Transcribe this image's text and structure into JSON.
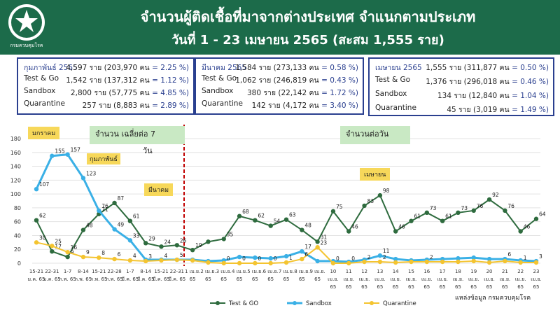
{
  "header": {
    "title": "จำนวนผู้ติดเชื้อที่มาจากต่างประเทศ จำแนกตามประเภท",
    "subtitle": "วันที่   1 - 23 เมษายน  2565 (สะสม 1,555 ราย)",
    "logo_text": "กรมควบคุมโรค"
  },
  "panels": [
    {
      "rows": [
        {
          "label": "กุมภาพันธ์ 2565",
          "value": "4,597 ราย (203,970 คน",
          "pct": " = 2.25 %)",
          "is_month": true
        },
        {
          "label": "Test & Go",
          "value": "1,542 ราย (137,312 คน",
          "pct": " = 1.12 %)"
        },
        {
          "label": "Sandbox",
          "value": "2,800 ราย (57,775 คน",
          "pct": " = 4.85 %)"
        },
        {
          "label": "Quarantine",
          "value": "257 ราย (8,883 คน",
          "pct": " = 2.89 %)"
        }
      ]
    },
    {
      "rows": [
        {
          "label": "มีนาคม 2565",
          "value": "1,584 ราย (273,133 คน",
          "pct": " = 0.58 %)",
          "is_month": true
        },
        {
          "label": "Test & Go",
          "value": "1,062 ราย (246,819 คน",
          "pct": " = 0.43 %)"
        },
        {
          "label": "Sandbox",
          "value": "380 ราย (22,142 คน",
          "pct": " = 1.72 %)"
        },
        {
          "label": "Quarantine",
          "value": "142 ราย (4,172 คน",
          "pct": " = 3.40 %)"
        }
      ]
    },
    {
      "rows": [
        {
          "label": "เมษายน 2565",
          "value": "1,555 ราย (311,877 คน",
          "pct": "  = 0.50 %)",
          "is_month": true
        },
        {
          "label": "Test & Go",
          "value": "1,376 ราย (296,018 คน",
          "pct": " = 0.46 %)"
        },
        {
          "label": "Sandbox",
          "value": "134 ราย (12,840 คน",
          "pct": " = 1.04 %)"
        },
        {
          "label": "Quarantine",
          "value": "45 ราย (3,019 คน",
          "pct": " = 1.49 %)"
        }
      ]
    }
  ],
  "annotations": {
    "jan": "มกราคม",
    "feb": "กุมภาพันธ์",
    "mar": "มีนาคม",
    "apr": "เมษายน",
    "avg7_line1": "จำนวน เฉลี่ยต่อ 7",
    "avg7_line2": "วัน",
    "daily": "จำนวนต่อวัน",
    "source": "แหล่งข้อมูล กรมควบคุมโรค"
  },
  "colors": {
    "banner": "#1c6b4a",
    "test_go": "#2e6b3e",
    "sandbox": "#3ab0e6",
    "quarantine": "#f4c430",
    "divider": "#c00000",
    "panel_border": "#2a3f8f"
  },
  "chart_data": {
    "type": "line",
    "ylim": [
      0,
      180
    ],
    "yticks": [
      0,
      20,
      40,
      60,
      80,
      100,
      120,
      140,
      160,
      180
    ],
    "categories": [
      [
        "15-21",
        "ม.ค. 65"
      ],
      [
        "22-31",
        "ม.ค. 65"
      ],
      [
        "1-7",
        "ก.พ. 65"
      ],
      [
        "8-14",
        "ก.พ. 65"
      ],
      [
        "15-21",
        "ก.พ. 65"
      ],
      [
        "22-28",
        "ก.พ. 65"
      ],
      [
        "1-7",
        "มี.ค. 65"
      ],
      [
        "8-14",
        "มี.ค. 65"
      ],
      [
        "15-21",
        "มี.ค. 65"
      ],
      [
        "22-31",
        "มี.ค. 65"
      ],
      [
        "1 เม.ย.",
        "65"
      ],
      [
        "2 เม.ย.",
        "65"
      ],
      [
        "3 เม.ย.",
        "65"
      ],
      [
        "4 เม.ย.",
        "65"
      ],
      [
        "5 เม.ย.",
        "65"
      ],
      [
        "6 เม.ย.",
        "65"
      ],
      [
        "7 เม.ย.",
        "65"
      ],
      [
        "8 เม.ย.",
        "65"
      ],
      [
        "9 เม.ย.",
        "65"
      ],
      [
        "10",
        "เม.ย.",
        "65"
      ],
      [
        "11",
        "เม.ย.",
        "65"
      ],
      [
        "12",
        "เม.ย.",
        "65"
      ],
      [
        "13",
        "เม.ย.",
        "65"
      ],
      [
        "14",
        "เม.ย.",
        "65"
      ],
      [
        "15",
        "เม.ย.",
        "65"
      ],
      [
        "16",
        "เม.ย.",
        "65"
      ],
      [
        "17",
        "เม.ย.",
        "65"
      ],
      [
        "18",
        "เม.ย.",
        "65"
      ],
      [
        "19",
        "เม.ย.",
        "65"
      ],
      [
        "20",
        "เม.ย.",
        "65"
      ],
      [
        "21",
        "เม.ย.",
        "65"
      ],
      [
        "22",
        "เม.ย.",
        "65"
      ],
      [
        "23",
        "เม.ย.",
        "65"
      ]
    ],
    "series": [
      {
        "name": "Test & GO",
        "values": [
          62,
          17,
          9,
          48,
          71,
          87,
          61,
          29,
          24,
          26,
          19,
          31,
          35,
          68,
          62,
          54,
          63,
          48,
          31,
          75,
          46,
          83,
          98,
          46,
          61,
          73,
          61,
          73,
          76,
          92,
          76,
          46,
          64
        ],
        "labels": [
          "62",
          "17",
          "9",
          "48",
          "71",
          "87",
          "61",
          "29",
          "24",
          "26",
          "19",
          "",
          "35",
          "68",
          "62",
          "54",
          "63",
          "48",
          "31",
          "75",
          "46",
          "83",
          "98",
          "46",
          "61",
          "73",
          "61",
          "73",
          "76",
          "92",
          "76",
          "46",
          "64"
        ]
      },
      {
        "name": "Sandbox",
        "values": [
          107,
          155,
          157,
          123,
          76,
          49,
          33,
          5,
          5,
          5,
          5,
          3,
          4,
          9,
          8,
          7,
          10,
          17,
          3,
          3,
          2,
          5,
          11,
          6,
          4,
          5,
          6,
          7,
          8,
          6,
          6,
          4,
          3
        ],
        "labels": [
          "107",
          "155",
          "157",
          "123",
          "76",
          "49",
          "33",
          "",
          "",
          "",
          "",
          "",
          "",
          "",
          "",
          "",
          "",
          "17",
          "",
          "",
          "",
          "",
          "11",
          "",
          "",
          "",
          "",
          "",
          "",
          "",
          "6",
          "",
          "3"
        ]
      },
      {
        "name": "Quarantine",
        "values": [
          30,
          25,
          16,
          9,
          8,
          6,
          4,
          3,
          4,
          5,
          4,
          1,
          0,
          0,
          0,
          0,
          1,
          6,
          23,
          0,
          0,
          2,
          2,
          1,
          2,
          2,
          2,
          2,
          3,
          1,
          3,
          1,
          1
        ],
        "labels": [
          "30",
          "25",
          "16",
          "9",
          "8",
          "6",
          "4",
          "3",
          "4",
          "5",
          "",
          "",
          "0",
          "0",
          "0",
          "0",
          "1",
          "6",
          "23",
          "0",
          "0",
          "2",
          "2",
          "",
          "",
          "2",
          "",
          "",
          "",
          "",
          "",
          "1",
          ""
        ]
      }
    ],
    "legend_position": "bottom"
  }
}
